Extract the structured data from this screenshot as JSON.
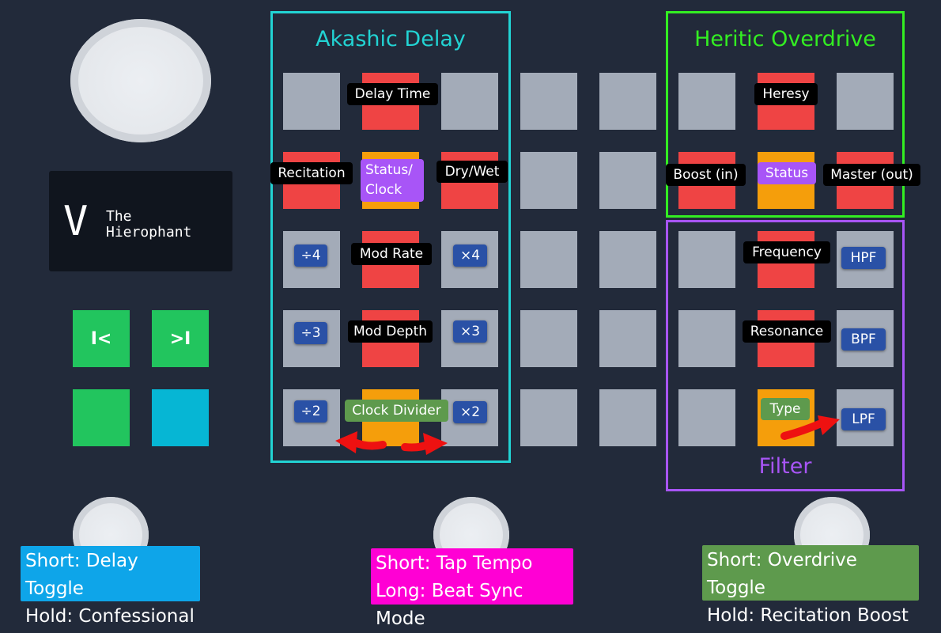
{
  "device": {
    "letter": "V",
    "name_line1": "The",
    "name_line2": "Hierophant",
    "prev_icon": "skip-back-icon",
    "next_icon": "skip-forward-icon",
    "prev_glyph": "I<",
    "next_glyph": ">I"
  },
  "colors": {
    "background": "#222a3a",
    "pad_gray": "#a3abb8",
    "pad_red": "#ef4444",
    "pad_orange": "#f59e0b",
    "delay_frame": "#22d3d3",
    "overdrive_frame": "#33ee22",
    "filter_frame": "#a855f7",
    "chip_blue": "#2a51a6",
    "footer_delay": "#0ea5e9",
    "footer_tempo": "#ff00d4",
    "footer_overdrive": "#5e9a4d"
  },
  "sections": {
    "delay": {
      "title": "Akashic Delay"
    },
    "overdrive": {
      "title": "Heritic Overdrive"
    },
    "filter": {
      "title": "Filter"
    }
  },
  "labels": {
    "delay_time": "Delay Time",
    "recitation": "Recitation",
    "status_clock_1": "Status/",
    "status_clock_2": "Clock",
    "dry_wet": "Dry/Wet",
    "mod_rate": "Mod Rate",
    "mod_depth": "Mod Depth",
    "clock_divider": "Clock Divider",
    "heresy": "Heresy",
    "boost_in": "Boost (in)",
    "status": "Status",
    "master_out": "Master (out)",
    "frequency": "Frequency",
    "resonance": "Resonance",
    "type": "Type"
  },
  "chips": {
    "div4": "÷4",
    "div3": "÷3",
    "div2": "÷2",
    "mul4": "×4",
    "mul3": "×3",
    "mul2": "×2",
    "hpf": "HPF",
    "bpf": "BPF",
    "lpf": "LPF"
  },
  "footswitches": {
    "left_line1": "Short: Delay Toggle",
    "left_line2": "Hold: Confessional",
    "center_line1": "Short: Tap Tempo",
    "center_line2": "Long: Beat Sync Mode",
    "right_line1": "Short: Overdrive Toggle",
    "right_line2": "Hold: Recitation Boost"
  }
}
